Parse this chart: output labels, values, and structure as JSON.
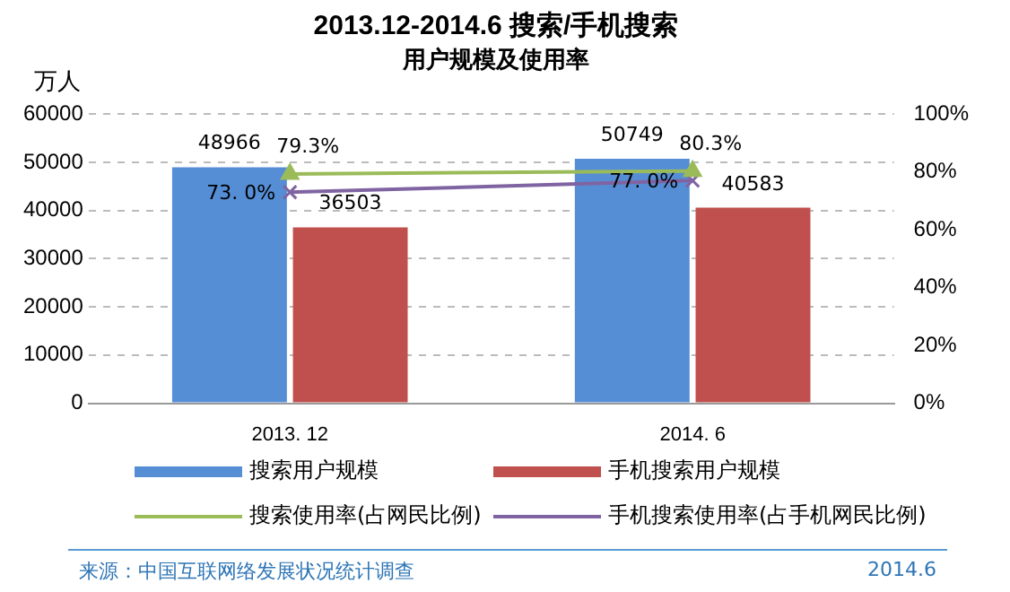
{
  "chart_data": {
    "type": "bar",
    "title": "2013.12-2014.6 搜索/手机搜索",
    "subtitle": "用户规模及使用率",
    "ylabel": "万人",
    "categories": [
      "2013. 12",
      "2014. 6"
    ],
    "series": [
      {
        "name": "搜索用户规模",
        "color": "#558ed5",
        "values": [
          48966,
          50749
        ],
        "value_labels": [
          "48966",
          "50749"
        ]
      },
      {
        "name": "手机搜索用户规模",
        "color": "#c0504d",
        "values": [
          36503,
          40583
        ],
        "value_labels": [
          "36503",
          "40583"
        ]
      },
      {
        "name": "搜索使用率(占网民比例)",
        "type": "line",
        "axis": "y2",
        "marker": "triangle",
        "color": "#9bbb59",
        "values": [
          79.3,
          80.3
        ],
        "value_labels": [
          "79.3%",
          "80.3%"
        ]
      },
      {
        "name": "手机搜索使用率(占手机网民比例)",
        "type": "line",
        "axis": "y2",
        "marker": "cross",
        "color": "#8064a2",
        "values": [
          73.0,
          77.0
        ],
        "value_labels": [
          "73. 0%",
          "77. 0%"
        ]
      }
    ],
    "ylim": [
      0,
      60000
    ],
    "yticks": [
      0,
      10000,
      20000,
      30000,
      40000,
      50000,
      60000
    ],
    "y2lim": [
      0,
      100
    ],
    "y2ticks": [
      {
        "value": 0,
        "label": "0%"
      },
      {
        "value": 20,
        "label": "20%"
      },
      {
        "value": 40,
        "label": "40%"
      },
      {
        "value": 60,
        "label": "60%"
      },
      {
        "value": 80,
        "label": "80%"
      },
      {
        "value": 100,
        "label": "100%"
      }
    ],
    "grid": "y",
    "legend": "bottom",
    "annotations": [
      "来源：中国互联网络发展状况统计调查",
      "2014.6"
    ]
  }
}
